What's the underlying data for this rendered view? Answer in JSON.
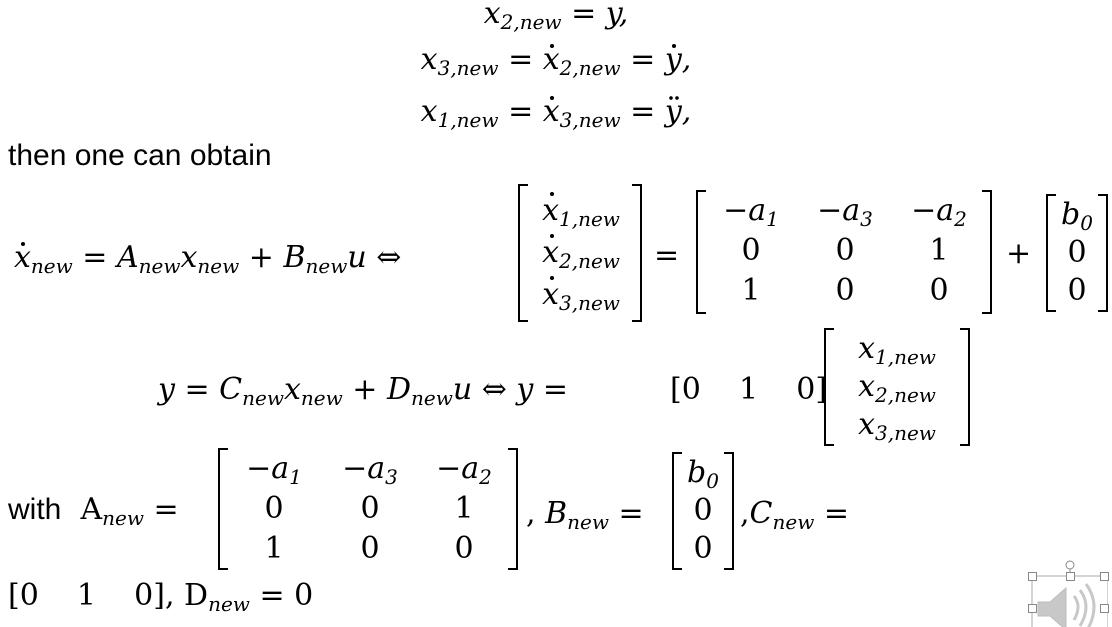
{
  "lines": {
    "line1": "x₂,new = y,",
    "line2": "x₃,new = ẋ₂,new = ẏ,",
    "line3": "x₁,new = ẋ₃,new = ÿ,",
    "prose_then": "then one can obtain",
    "prose_with": "with",
    "state_eq": "ẋnew = Anew xnew + Bnew u ⇔",
    "output_eq": "y = Cnew xnew + Dnew u ⇔ y =",
    "final_line": "[0   1   0], Dnew = 0"
  },
  "matrices": {
    "A_new": [
      [
        "−a1",
        "−a3",
        "−a2"
      ],
      [
        "0",
        "0",
        "1"
      ],
      [
        "1",
        "0",
        "0"
      ]
    ],
    "B_new": [
      "b0",
      "0",
      "0"
    ],
    "C_new": [
      "0",
      "1",
      "0"
    ],
    "x_dot_new": [
      "ẋ1,new",
      "ẋ2,new",
      "ẋ3,new"
    ],
    "x_new": [
      "x1,new",
      "x2,new",
      "x3,new"
    ]
  },
  "labels": {
    "A_new_label": "Anew",
    "B_new_label": "Bnew",
    "C_new_label": "Cnew",
    "D_new_label": "Dnew",
    "equals": "=",
    "plus": "+",
    "iff": "⇔",
    "comma": ","
  },
  "icons": {
    "speaker": "speaker-icon"
  }
}
